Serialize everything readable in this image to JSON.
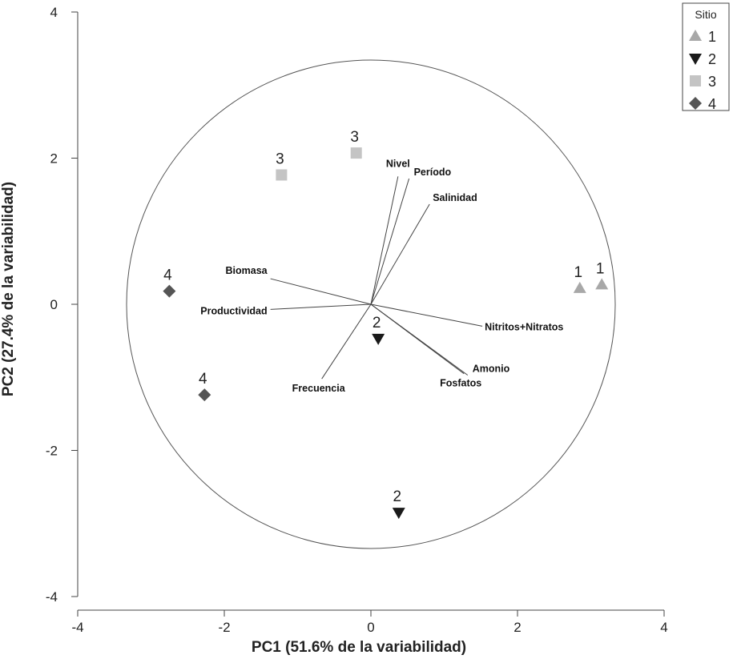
{
  "chart_data": {
    "type": "scatter",
    "subtype": "pca-biplot",
    "xlabel": "PC1 (51.6% de la variabilidad)",
    "ylabel": "PC2 (27.4% de la variabilidad)",
    "xlim": [
      -4,
      4
    ],
    "ylim": [
      -4,
      4
    ],
    "xticks": [
      -4,
      -2,
      0,
      2,
      4
    ],
    "yticks": [
      -4,
      -2,
      0,
      2,
      4
    ],
    "grid": false,
    "correlation_circle": true,
    "legend": {
      "title": "Sitio",
      "position": "top-right",
      "entries": [
        {
          "label": "1",
          "marker": "triangle-up",
          "color": "#a8a8a8"
        },
        {
          "label": "2",
          "marker": "triangle-down",
          "color": "#1a1a1a"
        },
        {
          "label": "3",
          "marker": "square",
          "color": "#c4c4c4"
        },
        {
          "label": "4",
          "marker": "diamond",
          "color": "#555555"
        }
      ]
    },
    "points": [
      {
        "site": "1",
        "label": "1",
        "x": 2.85,
        "y": 0.22
      },
      {
        "site": "1",
        "label": "1",
        "x": 3.15,
        "y": 0.27
      },
      {
        "site": "2",
        "label": "2",
        "x": 0.1,
        "y": -0.47
      },
      {
        "site": "2",
        "label": "2",
        "x": 0.38,
        "y": -2.85
      },
      {
        "site": "3",
        "label": "3",
        "x": -1.22,
        "y": 1.77
      },
      {
        "site": "3",
        "label": "3",
        "x": -0.2,
        "y": 2.07
      },
      {
        "site": "4",
        "label": "4",
        "x": -2.75,
        "y": 0.18
      },
      {
        "site": "4",
        "label": "4",
        "x": -2.27,
        "y": -1.24
      }
    ],
    "vectors": [
      {
        "label": "Nivel",
        "x": 0.37,
        "y": 1.75
      },
      {
        "label": "Período",
        "x": 0.52,
        "y": 1.72
      },
      {
        "label": "Salinidad",
        "x": 0.8,
        "y": 1.37
      },
      {
        "label": "Biomasa",
        "x": -1.37,
        "y": 0.35
      },
      {
        "label": "Productividad",
        "x": -1.37,
        "y": -0.07
      },
      {
        "label": "Nitritos+Nitratos",
        "x": 1.52,
        "y": -0.3
      },
      {
        "label": "Amonio",
        "x": 1.32,
        "y": -0.97
      },
      {
        "label": "Fosfatos",
        "x": 1.27,
        "y": -0.95
      },
      {
        "label": "Frecuencia",
        "x": -0.67,
        "y": -1.02
      }
    ]
  }
}
